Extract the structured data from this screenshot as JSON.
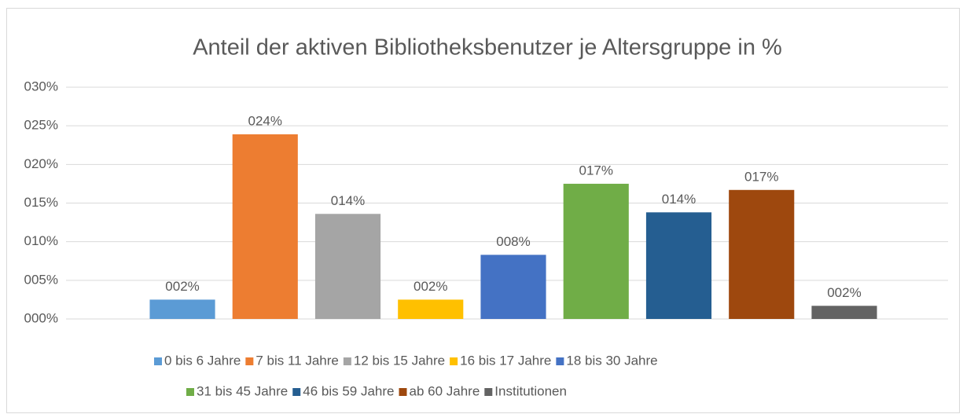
{
  "chart_data": {
    "type": "bar",
    "title": "Anteil der aktiven Bibliotheksbenutzer je Altersgruppe in %",
    "categories": [
      null
    ],
    "series": [
      {
        "name": "0 bis 6 Jahre",
        "color": "#5b9bd5",
        "values": [
          2.5
        ],
        "value_labels": [
          "002%"
        ]
      },
      {
        "name": "7 bis 11 Jahre",
        "color": "#ed7d31",
        "values": [
          23.9
        ],
        "value_labels": [
          "024%"
        ]
      },
      {
        "name": "12 bis 15 Jahre",
        "color": "#a5a5a5",
        "values": [
          13.6
        ],
        "value_labels": [
          "014%"
        ]
      },
      {
        "name": "16 bis 17 Jahre",
        "color": "#ffc000",
        "values": [
          2.5
        ],
        "value_labels": [
          "002%"
        ]
      },
      {
        "name": "18 bis 30 Jahre",
        "color": "#4472c4",
        "values": [
          8.3
        ],
        "value_labels": [
          "008%"
        ]
      },
      {
        "name": "31 bis 45 Jahre",
        "color": "#70ad47",
        "values": [
          17.5
        ],
        "value_labels": [
          "017%"
        ]
      },
      {
        "name": "46 bis 59 Jahre",
        "color": "#255e91",
        "values": [
          13.8
        ],
        "value_labels": [
          "014%"
        ]
      },
      {
        "name": "ab 60 Jahre",
        "color": "#9e480e",
        "values": [
          16.7
        ],
        "value_labels": [
          "017%"
        ]
      },
      {
        "name": "Institutionen",
        "color": "#636363",
        "values": [
          1.7
        ],
        "value_labels": [
          "002%"
        ]
      }
    ],
    "ylim": [
      0,
      30
    ],
    "yticks": [
      {
        "value": 0,
        "label": "000%"
      },
      {
        "value": 5,
        "label": "005%"
      },
      {
        "value": 10,
        "label": "010%"
      },
      {
        "value": 15,
        "label": "015%"
      },
      {
        "value": 20,
        "label": "020%"
      },
      {
        "value": 25,
        "label": "025%"
      },
      {
        "value": 30,
        "label": "030%"
      }
    ],
    "grid": true,
    "legend": "bottom"
  }
}
